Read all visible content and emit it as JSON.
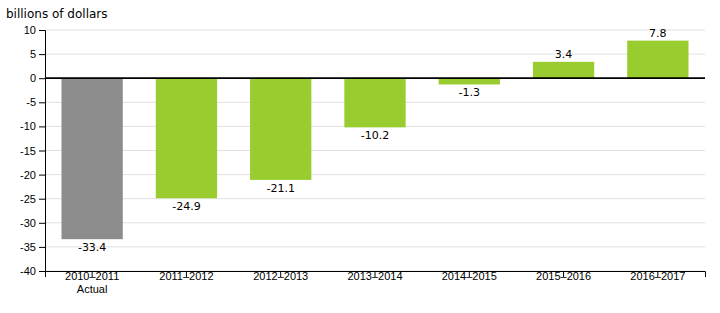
{
  "chart_data": {
    "type": "bar",
    "ylabel": "billions of dollars",
    "categories": [
      "2010–2011\nActual",
      "2011–2012",
      "2012–2013",
      "2013–2014",
      "2014–2015",
      "2015–2016",
      "2016–2017"
    ],
    "values": [
      -33.4,
      -24.9,
      -21.1,
      -10.2,
      -1.3,
      3.4,
      7.8
    ],
    "colors": [
      "#8c8c8c",
      "#99cc2e",
      "#99cc2e",
      "#99cc2e",
      "#99cc2e",
      "#99cc2e",
      "#99cc2e"
    ],
    "ylim": [
      -40,
      10
    ],
    "yticks": [
      -40,
      -35,
      -30,
      -25,
      -20,
      -15,
      -10,
      -5,
      0,
      5,
      10
    ],
    "grid": true,
    "data_labels": true
  }
}
